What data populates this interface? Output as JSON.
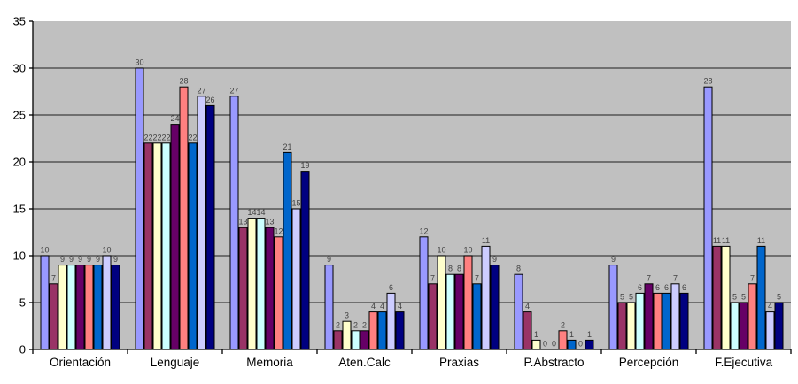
{
  "chart_data": {
    "type": "bar",
    "title": "",
    "xlabel": "",
    "ylabel": "",
    "categories": [
      "Orientación",
      "Lenguaje",
      "Memoria",
      "Aten.Calc",
      "Praxias",
      "P.Abstracto",
      "Percepción",
      "F.Ejecutiva"
    ],
    "series": [
      {
        "color": "#9999ff",
        "values": [
          10,
          30,
          27,
          9,
          12,
          8,
          9,
          28
        ]
      },
      {
        "color": "#993366",
        "values": [
          7,
          22,
          13,
          2,
          7,
          4,
          5,
          11
        ]
      },
      {
        "color": "#ffffcc",
        "values": [
          9,
          22,
          14,
          3,
          10,
          1,
          5,
          11
        ]
      },
      {
        "color": "#ccffff",
        "values": [
          9,
          22,
          14,
          2,
          8,
          0,
          6,
          5
        ]
      },
      {
        "color": "#660066",
        "values": [
          9,
          24,
          13,
          2,
          8,
          0,
          7,
          5
        ]
      },
      {
        "color": "#ff8080",
        "values": [
          9,
          28,
          12,
          4,
          10,
          2,
          6,
          7
        ]
      },
      {
        "color": "#0066cc",
        "values": [
          9,
          22,
          21,
          4,
          7,
          1,
          6,
          11
        ]
      },
      {
        "color": "#ccccff",
        "values": [
          10,
          27,
          15,
          6,
          11,
          0,
          7,
          4
        ]
      },
      {
        "color": "#000080",
        "values": [
          9,
          26,
          19,
          4,
          9,
          1,
          6,
          5
        ]
      }
    ],
    "y_ticks": [
      0,
      5,
      10,
      15,
      20,
      25,
      30,
      35
    ],
    "ylim": [
      0,
      35
    ],
    "grid": true,
    "legend_position": "none",
    "data_labels": true,
    "colors": {
      "plot_background": "#c0c0c0",
      "gridline": "#3f3f3f",
      "axis": "#000000",
      "bar_border": "#000000",
      "data_label": "#424242",
      "axis_label": "#000000"
    }
  }
}
